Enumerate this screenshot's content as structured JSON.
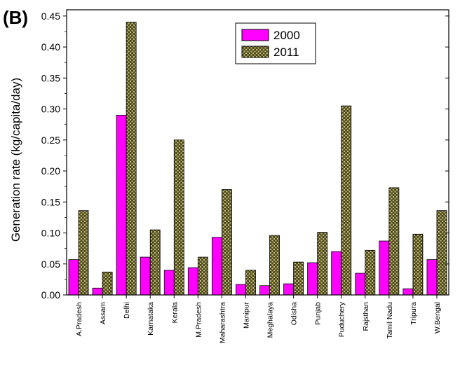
{
  "panel_label": "(B)",
  "colors": {
    "2000": "#ff00ff",
    "2011": "#4e4a1e",
    "hatch_light": "#c9c27c"
  },
  "chart_data": {
    "type": "bar",
    "ylabel": "Generation rate (kg/capita/day)",
    "xlabel": "",
    "ylim": [
      0,
      0.46
    ],
    "yticks": [
      0.0,
      0.05,
      0.1,
      0.15,
      0.2,
      0.25,
      0.3,
      0.35,
      0.4,
      0.45
    ],
    "ytick_labels": [
      "0.00",
      "0.05",
      "0.10",
      "0.15",
      "0.20",
      "0.25",
      "0.30",
      "0.35",
      "0.40",
      "0.45"
    ],
    "categories": [
      "A.Pradesh",
      "Assam",
      "Delhi",
      "Karnataka",
      "Kerala",
      "M.Pradesh",
      "Maharashtra",
      "Manipur",
      "Meghalaya",
      "Odisha",
      "Punjab",
      "Puduchery",
      "Rajsthan",
      "Tamil Nadu",
      "Tripura",
      "W.Bengal"
    ],
    "series": [
      {
        "name": "2000",
        "values": [
          0.057,
          0.011,
          0.29,
          0.061,
          0.04,
          0.044,
          0.093,
          0.017,
          0.015,
          0.018,
          0.052,
          0.07,
          0.035,
          0.087,
          0.01,
          0.057
        ]
      },
      {
        "name": "2011",
        "values": [
          0.136,
          0.037,
          0.44,
          0.105,
          0.25,
          0.061,
          0.17,
          0.04,
          0.096,
          0.053,
          0.101,
          0.305,
          0.072,
          0.173,
          0.098,
          0.136
        ]
      }
    ],
    "legend": {
      "placement": "top-center",
      "entries": [
        "2000",
        "2011"
      ]
    },
    "grid": false
  }
}
